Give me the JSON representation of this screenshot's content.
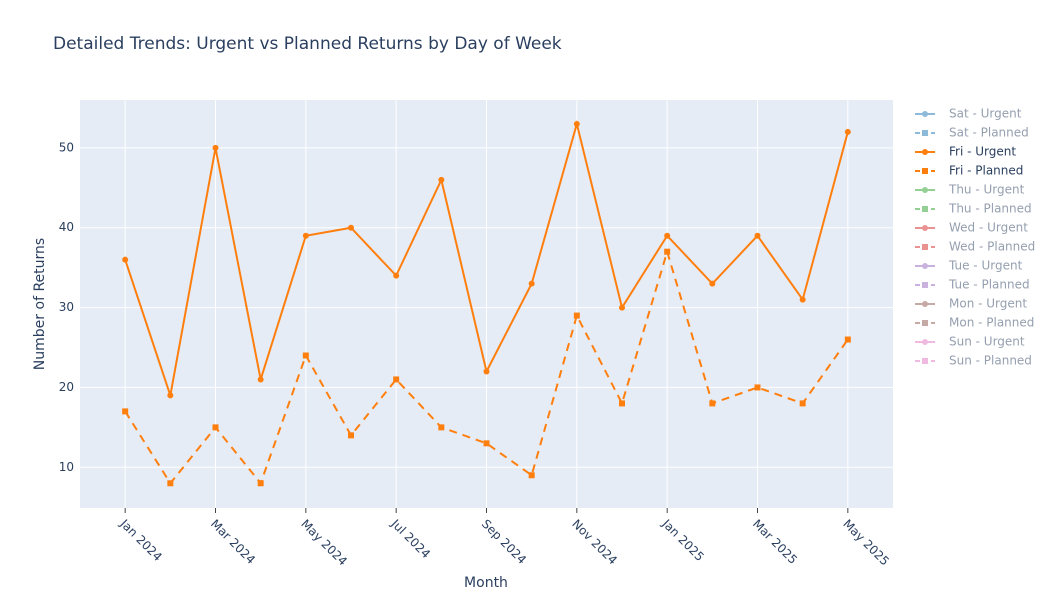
{
  "chart_data": {
    "type": "line",
    "title": "Detailed Trends: Urgent vs Planned Returns by Day of Week",
    "x_label": "Month",
    "y_label": "Number of Returns",
    "x": [
      "Jan 2024",
      "Feb 2024",
      "Mar 2024",
      "Apr 2024",
      "May 2024",
      "Jun 2024",
      "Jul 2024",
      "Aug 2024",
      "Sep 2024",
      "Oct 2024",
      "Nov 2024",
      "Dec 2024",
      "Jan 2025",
      "Feb 2025",
      "Mar 2025",
      "Apr 2025",
      "May 2025"
    ],
    "xlim": [
      "Dec 2023",
      "Jun 2025"
    ],
    "xticks": [
      "Jan 2024",
      "Mar 2024",
      "May 2024",
      "Jul 2024",
      "Sep 2024",
      "Nov 2024",
      "Jan 2025",
      "Mar 2025",
      "May 2025"
    ],
    "ylim": [
      4.9,
      56
    ],
    "yticks": [
      10,
      20,
      30,
      40,
      50
    ],
    "grid": true,
    "legend": "right",
    "series": [
      {
        "name": "Sat - Urgent",
        "color": "#1f77b4",
        "line": "solid",
        "marker": "circle",
        "visible": "legendonly"
      },
      {
        "name": "Sat - Planned",
        "color": "#1f77b4",
        "line": "dash",
        "marker": "square",
        "visible": "legendonly"
      },
      {
        "name": "Fri - Urgent",
        "color": "#ff7f0e",
        "line": "solid",
        "marker": "circle",
        "values": [
          36,
          19,
          50,
          21,
          39,
          40,
          34,
          46,
          22,
          33,
          53,
          30,
          39,
          33,
          39,
          31,
          52
        ]
      },
      {
        "name": "Fri - Planned",
        "color": "#ff7f0e",
        "line": "dash",
        "marker": "square",
        "values": [
          17,
          8,
          15,
          8,
          24,
          14,
          21,
          15,
          13,
          9,
          29,
          18,
          37,
          18,
          20,
          18,
          26
        ]
      },
      {
        "name": "Thu - Urgent",
        "color": "#2ca02c",
        "line": "solid",
        "marker": "circle",
        "visible": "legendonly"
      },
      {
        "name": "Thu - Planned",
        "color": "#2ca02c",
        "line": "dash",
        "marker": "square",
        "visible": "legendonly"
      },
      {
        "name": "Wed - Urgent",
        "color": "#d62728",
        "line": "solid",
        "marker": "circle",
        "visible": "legendonly"
      },
      {
        "name": "Wed - Planned",
        "color": "#d62728",
        "line": "dash",
        "marker": "square",
        "visible": "legendonly"
      },
      {
        "name": "Tue - Urgent",
        "color": "#9467bd",
        "line": "solid",
        "marker": "circle",
        "visible": "legendonly"
      },
      {
        "name": "Tue - Planned",
        "color": "#9467bd",
        "line": "dash",
        "marker": "square",
        "visible": "legendonly"
      },
      {
        "name": "Mon - Urgent",
        "color": "#8c564b",
        "line": "solid",
        "marker": "circle",
        "visible": "legendonly"
      },
      {
        "name": "Mon - Planned",
        "color": "#8c564b",
        "line": "dash",
        "marker": "square",
        "visible": "legendonly"
      },
      {
        "name": "Sun - Urgent",
        "color": "#e377c2",
        "line": "solid",
        "marker": "circle",
        "visible": "legendonly"
      },
      {
        "name": "Sun - Planned",
        "color": "#e377c2",
        "line": "dash",
        "marker": "square",
        "visible": "legendonly"
      }
    ]
  }
}
